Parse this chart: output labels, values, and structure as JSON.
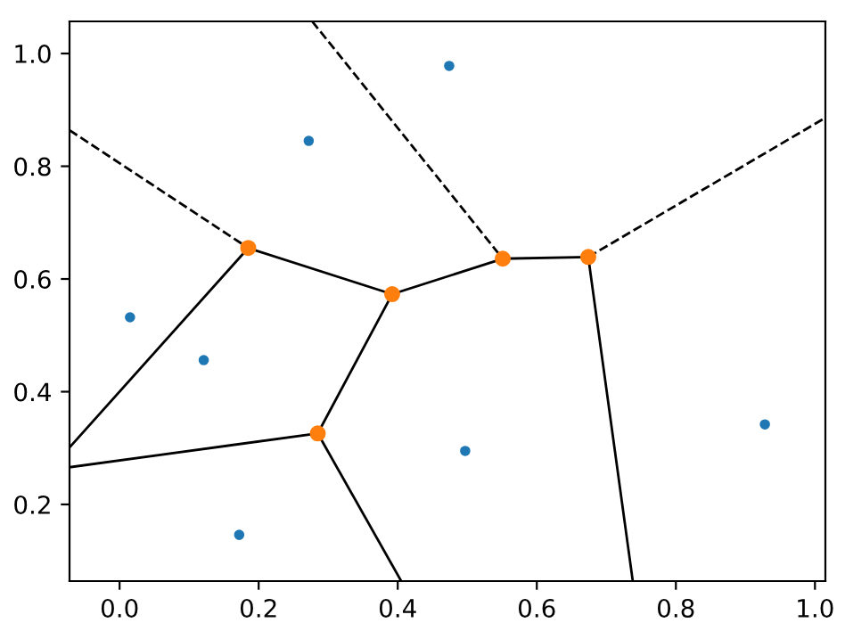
{
  "chart_data": {
    "type": "scatter",
    "xlim": [
      -0.072,
      1.015
    ],
    "ylim": [
      0.064,
      1.057
    ],
    "xticks": [
      {
        "value": 0.0,
        "label": "0.0"
      },
      0.2,
      0.4,
      0.6,
      0.8,
      {
        "value": 1.0,
        "label": "1.0"
      }
    ],
    "yticks": [
      0.2,
      0.4,
      0.6,
      0.8,
      {
        "value": 1.0,
        "label": "1.0"
      }
    ],
    "grid": false,
    "legend": false,
    "series": [
      {
        "type": "line",
        "color": "#000000",
        "line_style": "solid",
        "marker": "none",
        "x": [
          -0.072,
          0.185
        ],
        "values": [
          0.301,
          0.655
        ]
      },
      {
        "type": "line",
        "color": "#000000",
        "line_style": "solid",
        "marker": "none",
        "x": [
          0.185,
          0.392
        ],
        "values": [
          0.655,
          0.573
        ]
      },
      {
        "type": "line",
        "color": "#000000",
        "line_style": "solid",
        "marker": "none",
        "x": [
          0.392,
          0.551
        ],
        "values": [
          0.573,
          0.636
        ]
      },
      {
        "type": "line",
        "color": "#000000",
        "line_style": "solid",
        "marker": "none",
        "x": [
          0.551,
          0.674
        ],
        "values": [
          0.636,
          0.639
        ]
      },
      {
        "type": "line",
        "color": "#000000",
        "line_style": "solid",
        "marker": "none",
        "x": [
          0.392,
          0.285
        ],
        "values": [
          0.573,
          0.326
        ]
      },
      {
        "type": "line",
        "color": "#000000",
        "line_style": "solid",
        "marker": "none",
        "x": [
          -0.072,
          0.285
        ],
        "values": [
          0.266,
          0.326
        ]
      },
      {
        "type": "line",
        "color": "#000000",
        "line_style": "solid",
        "marker": "none",
        "x": [
          0.285,
          0.405
        ],
        "values": [
          0.326,
          0.064
        ]
      },
      {
        "type": "line",
        "color": "#000000",
        "line_style": "solid",
        "marker": "none",
        "x": [
          0.674,
          0.738
        ],
        "values": [
          0.639,
          0.064
        ]
      },
      {
        "type": "line",
        "color": "#000000",
        "line_style": "dashed",
        "marker": "none",
        "x": [
          -0.072,
          0.185
        ],
        "values": [
          0.864,
          0.655
        ]
      },
      {
        "type": "line",
        "color": "#000000",
        "line_style": "dashed",
        "marker": "none",
        "x": [
          0.277,
          0.551
        ],
        "values": [
          1.057,
          0.636
        ]
      },
      {
        "type": "line",
        "color": "#000000",
        "line_style": "dashed",
        "marker": "none",
        "x": [
          0.674,
          1.015
        ],
        "values": [
          0.639,
          0.886
        ]
      },
      {
        "color": "#1f77b4",
        "marker": "circle",
        "x": [
          0.015,
          0.121,
          0.272,
          0.172,
          0.474,
          0.497,
          0.928
        ],
        "values": [
          0.532,
          0.456,
          0.845,
          0.146,
          0.978,
          0.295,
          0.342
        ]
      },
      {
        "color": "#ff7f0e",
        "marker": "circle",
        "x": [
          0.185,
          0.392,
          0.551,
          0.674,
          0.285
        ],
        "values": [
          0.655,
          0.573,
          0.636,
          0.639,
          0.326
        ]
      }
    ]
  }
}
